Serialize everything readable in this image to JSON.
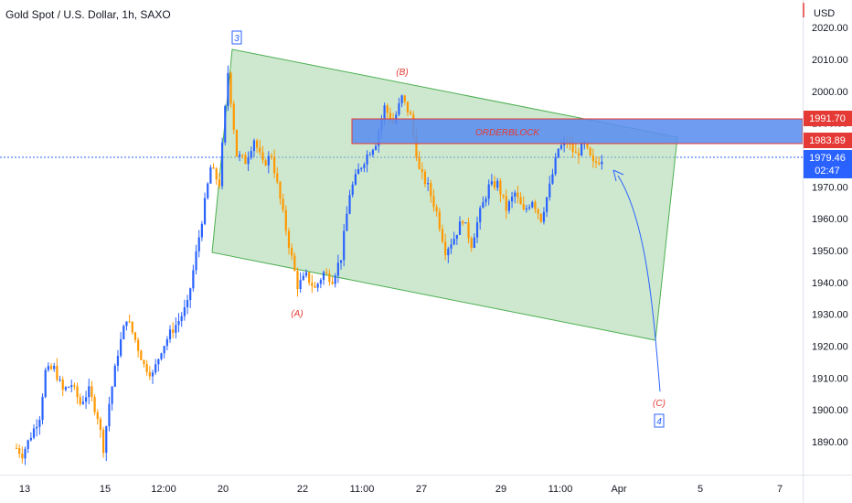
{
  "header": {
    "symbol_title": "Gold Spot / U.S. Dollar, 1h, SAXO",
    "currency": "USD"
  },
  "colors": {
    "up": "#2962ff",
    "down": "#ff9800",
    "channel_fill": "#a5d6a7",
    "channel_stroke": "#4caf50",
    "orderblock_fill": "#5b8def",
    "orderblock_stroke": "#e53935",
    "last_price_bg": "#2962ff",
    "level_bg": "#e53935",
    "wave_label": "#e53935",
    "wave_number": "#2962ff"
  },
  "chart_data": {
    "type": "candlestick",
    "title": "Gold Spot / U.S. Dollar, 1h, SAXO",
    "ylim": [
      1882,
      2022
    ],
    "y_ticks": [
      1890,
      1900,
      1910,
      1920,
      1930,
      1940,
      1950,
      1960,
      1970,
      1980,
      1990,
      2000,
      2010,
      2020
    ],
    "y_tick_labels": [
      "1890.00",
      "1900.00",
      "1910.00",
      "1920.00",
      "1930.00",
      "1940.00",
      "1950.00",
      "1960.00",
      "1970.00",
      "1980.00",
      "1990.00",
      "2000.00",
      "2010.00",
      "2020.00"
    ],
    "x_tick_labels": [
      "13",
      "15",
      "12:00",
      "20",
      "22",
      "11:00",
      "27",
      "29",
      "11:00",
      "Apr",
      "5",
      "7"
    ],
    "price_path": [
      [
        0,
        1888
      ],
      [
        2,
        1886
      ],
      [
        5,
        1892
      ],
      [
        8,
        1898
      ],
      [
        10,
        1912
      ],
      [
        13,
        1913
      ],
      [
        16,
        1906
      ],
      [
        19,
        1908
      ],
      [
        22,
        1902
      ],
      [
        25,
        1906
      ],
      [
        28,
        1898
      ],
      [
        30,
        1888
      ],
      [
        32,
        1902
      ],
      [
        35,
        1918
      ],
      [
        38,
        1929
      ],
      [
        41,
        1922
      ],
      [
        44,
        1914
      ],
      [
        47,
        1911
      ],
      [
        50,
        1919
      ],
      [
        53,
        1924
      ],
      [
        56,
        1928
      ],
      [
        59,
        1933
      ],
      [
        62,
        1949
      ],
      [
        65,
        1965
      ],
      [
        67,
        1976
      ],
      [
        70,
        1971
      ],
      [
        73,
        2006
      ],
      [
        76,
        1980
      ],
      [
        79,
        1978
      ],
      [
        82,
        1985
      ],
      [
        85,
        1977
      ],
      [
        88,
        1980
      ],
      [
        91,
        1966
      ],
      [
        94,
        1952
      ],
      [
        97,
        1939
      ],
      [
        100,
        1942
      ],
      [
        103,
        1938
      ],
      [
        106,
        1943
      ],
      [
        109,
        1941
      ],
      [
        112,
        1948
      ],
      [
        115,
        1968
      ],
      [
        118,
        1975
      ],
      [
        121,
        1980
      ],
      [
        124,
        1984
      ],
      [
        127,
        1995
      ],
      [
        130,
        1990
      ],
      [
        133,
        1998
      ],
      [
        136,
        1992
      ],
      [
        139,
        1975
      ],
      [
        142,
        1970
      ],
      [
        145,
        1962
      ],
      [
        148,
        1950
      ],
      [
        151,
        1954
      ],
      [
        154,
        1960
      ],
      [
        157,
        1952
      ],
      [
        160,
        1962
      ],
      [
        163,
        1970
      ],
      [
        166,
        1971
      ],
      [
        169,
        1963
      ],
      [
        172,
        1968
      ],
      [
        175,
        1962
      ],
      [
        178,
        1966
      ],
      [
        181,
        1960
      ],
      [
        184,
        1970
      ],
      [
        187,
        1982
      ],
      [
        190,
        1984
      ],
      [
        193,
        1980
      ],
      [
        196,
        1983
      ],
      [
        199,
        1977
      ],
      [
        202,
        1979
      ]
    ],
    "last_price": 1979.46,
    "last_price_label": "1979.46",
    "countdown": "02:47",
    "level_high": 1991.7,
    "level_high_label": "1991.70",
    "level_low": 1983.89,
    "level_low_label": "1983.89",
    "orderblock_label": "ORDERBLOCK",
    "wave_labels": {
      "A": "(A)",
      "B": "(B)",
      "C": "(C)",
      "n3": "3",
      "n4": "4"
    }
  }
}
